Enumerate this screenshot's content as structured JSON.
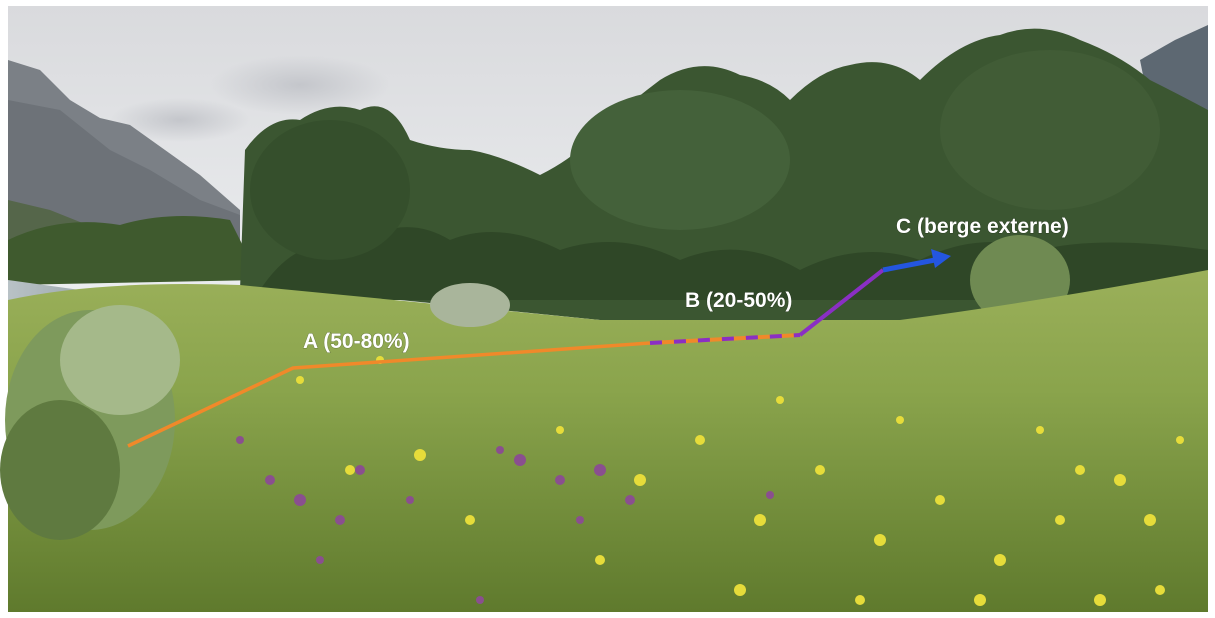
{
  "labels": {
    "a": "A (50-80%)",
    "b": "B (20-50%)",
    "c": "C (berge externe)"
  },
  "colors": {
    "zone_a_line": "#f0892a",
    "zone_b_line": "#8a2fc4",
    "zone_c_arrow": "#2456e0",
    "label_text": "#ffffff"
  }
}
